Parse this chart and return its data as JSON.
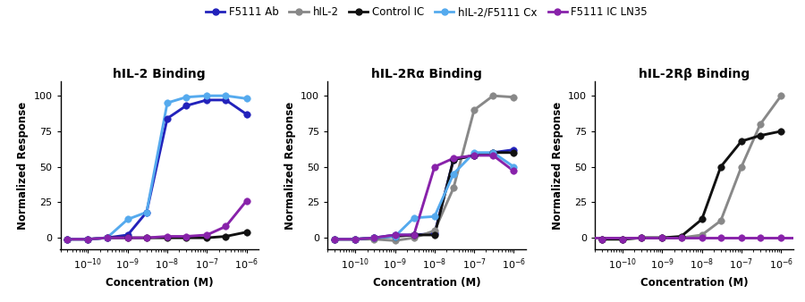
{
  "colors": {
    "F5111_Ab": "#2222BB",
    "hIL2": "#888888",
    "Control_IC": "#111111",
    "hIL2_F5111_Cx": "#55AAEE",
    "F5111_IC_LN35": "#8822AA"
  },
  "legend_labels": [
    "F5111 Ab",
    "hIL-2",
    "Control IC",
    "hIL-2/F5111 Cx",
    "F5111 IC LN35"
  ],
  "panel_titles": [
    "hIL-2 Binding",
    "hIL-2Rα Binding",
    "hIL-2Rβ Binding"
  ],
  "xlabel": "Concentration (M)",
  "ylabel": "Normalized Response",
  "panel1": {
    "F5111_Ab": {
      "x": [
        3e-11,
        1e-10,
        3e-10,
        1e-09,
        3e-09,
        1e-08,
        3e-08,
        1e-07,
        3e-07,
        1e-06
      ],
      "y": [
        -1,
        -1,
        0,
        2,
        18,
        84,
        93,
        97,
        97,
        87
      ]
    },
    "hIL2": {
      "x": [],
      "y": []
    },
    "Control_IC": {
      "x": [
        3e-11,
        1e-10,
        3e-10,
        1e-09,
        3e-09,
        1e-08,
        3e-08,
        1e-07,
        3e-07,
        1e-06
      ],
      "y": [
        -1,
        -1,
        0,
        0,
        0,
        0,
        0,
        0,
        1,
        4
      ]
    },
    "hIL2_F5111_Cx": {
      "x": [
        3e-11,
        1e-10,
        3e-10,
        1e-09,
        3e-09,
        1e-08,
        3e-08,
        1e-07,
        3e-07,
        1e-06
      ],
      "y": [
        -1,
        -1,
        0,
        13,
        18,
        95,
        99,
        100,
        100,
        98
      ]
    },
    "F5111_IC_LN35": {
      "x": [
        3e-11,
        1e-10,
        3e-10,
        1e-09,
        3e-09,
        1e-08,
        3e-08,
        1e-07,
        3e-07,
        1e-06
      ],
      "y": [
        -1,
        -1,
        0,
        0,
        0,
        1,
        1,
        2,
        8,
        26
      ]
    }
  },
  "panel2": {
    "F5111_Ab": {
      "x": [
        3e-11,
        1e-10,
        3e-10,
        1e-09,
        3e-09,
        1e-08,
        3e-08,
        1e-07,
        3e-07,
        1e-06
      ],
      "y": [
        -1,
        -1,
        0,
        2,
        2,
        3,
        55,
        58,
        60,
        62
      ]
    },
    "hIL2": {
      "x": [
        3e-11,
        1e-10,
        3e-10,
        1e-09,
        3e-09,
        1e-08,
        3e-08,
        1e-07,
        3e-07,
        1e-06
      ],
      "y": [
        -1,
        -1,
        -1,
        -2,
        0,
        5,
        35,
        90,
        100,
        99
      ]
    },
    "Control_IC": {
      "x": [
        3e-11,
        1e-10,
        3e-10,
        1e-09,
        3e-09,
        1e-08,
        3e-08,
        1e-07,
        3e-07,
        1e-06
      ],
      "y": [
        -1,
        -1,
        0,
        1,
        2,
        2,
        55,
        58,
        60,
        60
      ]
    },
    "hIL2_F5111_Cx": {
      "x": [
        3e-11,
        1e-10,
        3e-10,
        1e-09,
        3e-09,
        1e-08,
        3e-08,
        1e-07,
        3e-07,
        1e-06
      ],
      "y": [
        -1,
        -1,
        0,
        1,
        14,
        15,
        45,
        60,
        60,
        50
      ]
    },
    "F5111_IC_LN35": {
      "x": [
        3e-11,
        1e-10,
        3e-10,
        1e-09,
        3e-09,
        1e-08,
        3e-08,
        1e-07,
        3e-07,
        1e-06
      ],
      "y": [
        -1,
        -1,
        0,
        2,
        2,
        50,
        56,
        58,
        58,
        47
      ]
    }
  },
  "panel3": {
    "F5111_Ab": {
      "x": [],
      "y": []
    },
    "hIL2": {
      "x": [
        3e-11,
        1e-10,
        3e-10,
        1e-09,
        3e-09,
        1e-08,
        3e-08,
        1e-07,
        3e-07,
        1e-06
      ],
      "y": [
        -1,
        -1,
        0,
        0,
        0,
        2,
        12,
        50,
        80,
        100
      ]
    },
    "Control_IC": {
      "x": [
        3e-11,
        1e-10,
        3e-10,
        1e-09,
        3e-09,
        1e-08,
        3e-08,
        1e-07,
        3e-07,
        1e-06
      ],
      "y": [
        -1,
        -1,
        0,
        0,
        1,
        13,
        50,
        68,
        72,
        75
      ]
    },
    "hIL2_F5111_Cx": {
      "x": [],
      "y": []
    },
    "F5111_IC_LN35": {
      "x": [
        3e-11,
        1e-10,
        3e-10,
        1e-09,
        3e-09,
        1e-08,
        3e-08,
        1e-07,
        3e-07,
        1e-06
      ],
      "y": [
        -1,
        -1,
        0,
        0,
        0,
        0,
        0,
        0,
        0,
        0
      ]
    }
  },
  "ylim": [
    -8,
    110
  ],
  "yticks": [
    0,
    25,
    50,
    75,
    100
  ],
  "xlim_log": [
    -10.7,
    -5.7
  ]
}
